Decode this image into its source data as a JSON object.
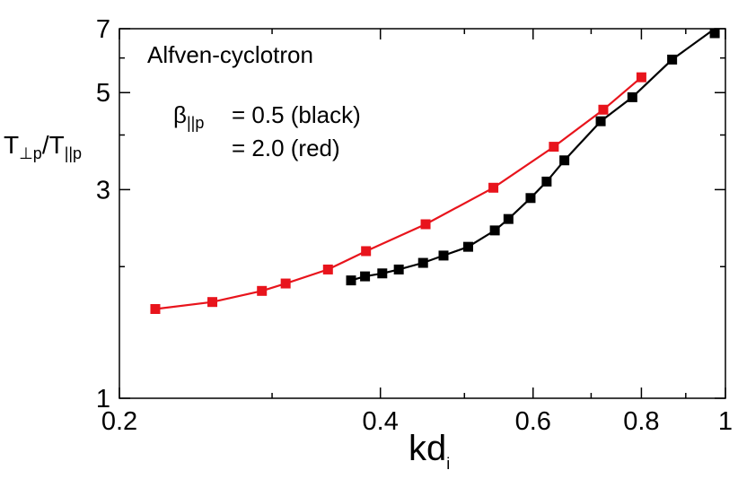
{
  "chart_data": {
    "type": "line",
    "title": "",
    "xscale": "log",
    "yscale": "log",
    "xlim": [
      0.2,
      1.0
    ],
    "ylim": [
      1,
      7
    ],
    "xticks": [
      0.2,
      0.4,
      0.6,
      0.8,
      1.0
    ],
    "xtick_labels": [
      "0.2",
      "0.4",
      "0.6",
      "0.8",
      "1"
    ],
    "xminor_ticks": [
      0.3,
      0.5,
      0.7,
      0.9
    ],
    "yticks": [
      1,
      3,
      5,
      7
    ],
    "ytick_labels": [
      "1",
      "3",
      "5",
      "7"
    ],
    "yminor_ticks": [
      2,
      4,
      6
    ],
    "xlabel_main": "kd",
    "xlabel_sub": "i",
    "ylabel_main_1": "T",
    "ylabel_sub_1": "⊥p",
    "ylabel_main_2": "/T",
    "ylabel_sub_2": "||p",
    "annotations": {
      "title": "Alfven-cyclotron",
      "beta_symbol": "β",
      "beta_sub": "||p",
      "line1": "= 0.5 (black)",
      "line2": "= 2.0 (red)"
    },
    "grid": false,
    "series": [
      {
        "name": "β||p = 0.5 (black)",
        "color": "#000000",
        "marker": "square",
        "x": [
          0.37,
          0.384,
          0.402,
          0.42,
          0.448,
          0.473,
          0.505,
          0.542,
          0.562,
          0.596,
          0.622,
          0.652,
          0.718,
          0.781,
          0.868,
          0.972
        ],
        "y": [
          1.86,
          1.9,
          1.93,
          1.97,
          2.04,
          2.12,
          2.22,
          2.42,
          2.57,
          2.87,
          3.13,
          3.5,
          4.3,
          4.88,
          5.95,
          7.3
        ]
      },
      {
        "name": "β||p = 2.0 (red)",
        "color": "#e8141c",
        "marker": "square",
        "x": [
          0.22,
          0.256,
          0.292,
          0.311,
          0.348,
          0.385,
          0.451,
          0.54,
          0.634,
          0.723,
          0.8
        ],
        "y": [
          1.6,
          1.66,
          1.76,
          1.83,
          1.97,
          2.17,
          2.5,
          3.03,
          3.76,
          4.57,
          5.42
        ]
      }
    ]
  }
}
